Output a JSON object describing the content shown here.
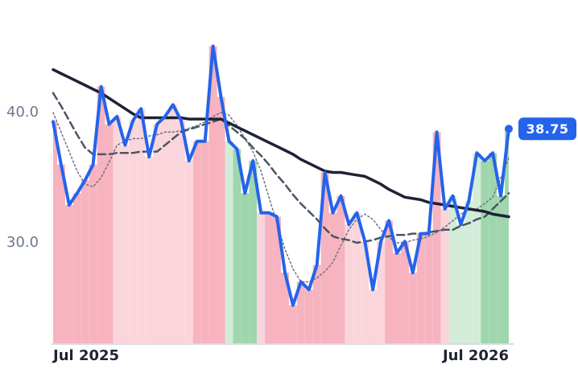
{
  "chart_data": {
    "type": "line",
    "categories": [
      "Jul 2025",
      null,
      null,
      null,
      null,
      null,
      null,
      null,
      null,
      null,
      null,
      null,
      null,
      null,
      null,
      null,
      null,
      null,
      null,
      null,
      null,
      null,
      null,
      null,
      null,
      null,
      null,
      null,
      null,
      null,
      null,
      null,
      null,
      null,
      null,
      null,
      null,
      null,
      null,
      null,
      null,
      null,
      null,
      null,
      null,
      null,
      null,
      null,
      null,
      null,
      null,
      null,
      null,
      null,
      null,
      null,
      null,
      "Jul 2026"
    ],
    "ylim": [
      22.28,
      45.56
    ],
    "yticks": [
      {
        "value": 30,
        "label": "30.0"
      },
      {
        "value": 40,
        "label": "40.0"
      }
    ],
    "grid": false,
    "series": [
      {
        "color": "#2563eb",
        "dash": "solid",
        "width": 4,
        "values": [
          39.3,
          36.0,
          32.9,
          33.8,
          34.8,
          36.0,
          42.0,
          39.1,
          39.7,
          37.5,
          39.4,
          40.3,
          36.6,
          39.1,
          39.7,
          40.6,
          39.4,
          36.3,
          37.8,
          37.8,
          45.1,
          41.2,
          37.8,
          37.2,
          33.8,
          36.3,
          32.3,
          32.3,
          32.0,
          27.7,
          25.2,
          27.0,
          26.4,
          28.3,
          35.4,
          32.3,
          33.6,
          31.4,
          32.3,
          30.1,
          26.4,
          30.1,
          31.7,
          29.2,
          30.1,
          27.7,
          30.7,
          30.7,
          38.5,
          32.6,
          33.6,
          31.4,
          33.2,
          36.9,
          36.3,
          36.9,
          33.6,
          38.75
        ],
        "fill_colors": [
          "#f7b3bf",
          "#f7b3bf",
          "#f7b3bf",
          "#f7b3bf",
          "#f7b3bf",
          "#f7b3bf",
          "#f7b3bf",
          "#f7b3bf",
          "#fbd5dc",
          "#fbd5dc",
          "#fbd5dc",
          "#fbd5dc",
          "#fbd5dc",
          "#fbd5dc",
          "#fbd5dc",
          "#fbd5dc",
          "#fbd5dc",
          "#fbd5dc",
          "#f7b3bf",
          "#f7b3bf",
          "#f7b3bf",
          "#f7b3bf",
          "#d3ecd9",
          "#9fd6ad",
          "#9fd6ad",
          "#9fd6ad",
          "#fbd5dc",
          "#f7b3bf",
          "#f7b3bf",
          "#f7b3bf",
          "#f7b3bf",
          "#f7b3bf",
          "#f7b3bf",
          "#f7b3bf",
          "#f7b3bf",
          "#f7b3bf",
          "#f7b3bf",
          "#fbd5dc",
          "#fbd5dc",
          "#fbd5dc",
          "#fbd5dc",
          "#fbd5dc",
          "#f7b3bf",
          "#f7b3bf",
          "#f7b3bf",
          "#f7b3bf",
          "#f7b3bf",
          "#f7b3bf",
          "#f7b3bf",
          "#fbd5dc",
          "#d3ecd9",
          "#d3ecd9",
          "#d3ecd9",
          "#d3ecd9",
          "#9fd6ad",
          "#9fd6ad",
          "#9fd6ad",
          "#9fd6ad"
        ]
      },
      {
        "color": "#1e2235",
        "dash": "solid",
        "width": 3.5,
        "values": [
          43.3,
          43.0,
          42.7,
          42.4,
          42.1,
          41.8,
          41.5,
          41.1,
          40.7,
          40.3,
          39.9,
          39.6,
          39.6,
          39.6,
          39.6,
          39.6,
          39.6,
          39.5,
          39.5,
          39.5,
          39.5,
          39.5,
          39.2,
          38.9,
          38.6,
          38.3,
          38.0,
          37.7,
          37.4,
          37.1,
          36.8,
          36.4,
          36.1,
          35.8,
          35.5,
          35.4,
          35.4,
          35.3,
          35.2,
          35.1,
          34.8,
          34.5,
          34.1,
          33.8,
          33.5,
          33.4,
          33.3,
          33.1,
          33.0,
          32.9,
          32.8,
          32.7,
          32.6,
          32.5,
          32.4,
          32.2,
          32.1,
          32.0
        ]
      },
      {
        "color": "#4b5563",
        "dash": "dashed",
        "width": 2.5,
        "values": [
          41.5,
          40.5,
          39.4,
          38.3,
          37.3,
          36.8,
          36.8,
          36.8,
          36.9,
          36.9,
          36.9,
          37.0,
          37.0,
          37.0,
          37.5,
          38.0,
          38.5,
          38.7,
          38.9,
          39.1,
          39.3,
          39.5,
          39.0,
          38.5,
          38.0,
          37.3,
          36.7,
          36.0,
          35.2,
          34.5,
          33.7,
          33.0,
          32.4,
          31.8,
          31.1,
          30.5,
          30.3,
          30.2,
          30.0,
          30.1,
          30.2,
          30.4,
          30.5,
          30.6,
          30.6,
          30.7,
          30.7,
          30.8,
          30.9,
          31.0,
          31.0,
          31.3,
          31.5,
          31.8,
          32.0,
          32.6,
          33.2,
          33.8
        ]
      },
      {
        "color": "#6b7280",
        "dash": "dotted",
        "width": 1.5,
        "values": [
          40.0,
          38.5,
          37.0,
          35.5,
          34.5,
          34.3,
          35.0,
          36.2,
          37.5,
          37.8,
          38.0,
          38.0,
          38.2,
          38.3,
          38.5,
          38.5,
          38.6,
          38.8,
          39.0,
          39.3,
          39.7,
          40.0,
          39.8,
          39.0,
          38.0,
          37.0,
          35.5,
          33.5,
          31.5,
          29.5,
          28.0,
          27.0,
          27.0,
          27.3,
          27.8,
          28.5,
          29.8,
          31.0,
          31.8,
          32.2,
          31.8,
          31.0,
          30.4,
          30.0,
          30.0,
          30.2,
          30.3,
          30.5,
          30.8,
          31.2,
          31.7,
          32.2,
          32.5,
          32.6,
          33.0,
          33.5,
          35.0,
          36.5
        ]
      }
    ]
  }
}
